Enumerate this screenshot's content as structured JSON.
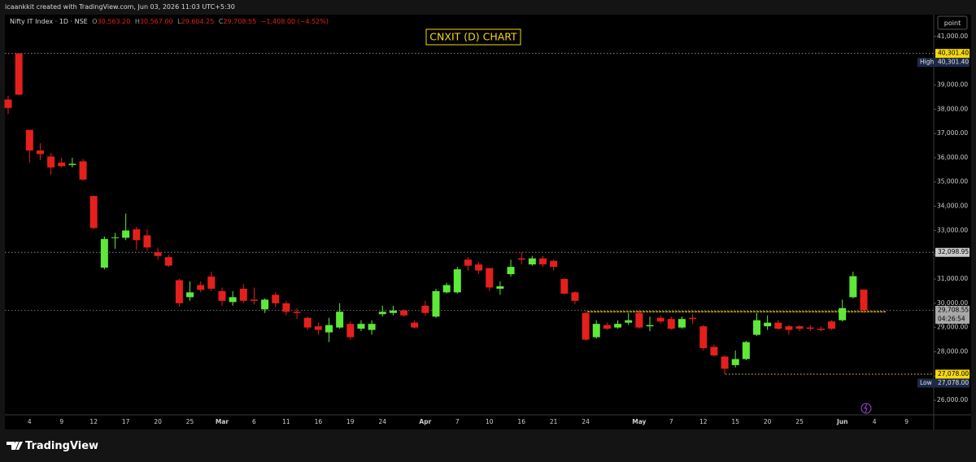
{
  "attribution": "icaankkit created with TradingView.com, Jun 03, 2026 11:03 UTC+5:30",
  "branding": "TradingView",
  "button": "point",
  "legend": {
    "symbol": "Nifty IT Index · 1D · NSE",
    "items": [
      {
        "key": "O",
        "text": "30,563.20"
      },
      {
        "key": "H",
        "text": "30,567.00"
      },
      {
        "key": "L",
        "text": "29,604.25"
      },
      {
        "key": "C",
        "text": "29,708.55"
      }
    ],
    "change": "−1,408.00 (−4.52%)"
  },
  "chart_data": {
    "type": "candlestick",
    "title": "CNXIT (D) CHART",
    "up_color": "#5ee83a",
    "down_color": "#e3201b",
    "categories": [
      null,
      null,
      "4",
      null,
      null,
      "9",
      null,
      null,
      "12",
      null,
      null,
      "17",
      null,
      null,
      "20",
      null,
      null,
      "25",
      null,
      null,
      "Mar",
      null,
      null,
      "6",
      null,
      null,
      "11",
      null,
      null,
      "16",
      null,
      null,
      "19",
      null,
      null,
      "24",
      null,
      null,
      null,
      "Apr",
      null,
      null,
      "7",
      null,
      null,
      "10",
      null,
      null,
      "16",
      null,
      null,
      "21",
      null,
      null,
      "24",
      null,
      null,
      null,
      null,
      "May",
      null,
      null,
      "7",
      null,
      null,
      "12",
      null,
      null,
      "15",
      null,
      null,
      "20",
      null,
      null,
      "25",
      null,
      null,
      null,
      "Jun",
      null,
      null,
      "4",
      null,
      null,
      "9"
    ],
    "open": [
      38400,
      40300,
      37150,
      36300,
      36050,
      35800,
      35700,
      35850,
      34420,
      31470,
      32700,
      32700,
      33050,
      32800,
      32100,
      31900,
      30950,
      30250,
      30750,
      31100,
      30500,
      30050,
      30600,
      30150,
      29750,
      30350,
      30000,
      29650,
      29400,
      29050,
      28800,
      29000,
      29150,
      28950,
      28900,
      29550,
      29600,
      29700,
      29200,
      29900,
      29450,
      30450,
      30450,
      31800,
      31600,
      31450,
      30600,
      31200,
      31850,
      31600,
      31850,
      31750,
      31000,
      30450,
      29600,
      28600,
      29100,
      29000,
      29200,
      29600,
      29050,
      29400,
      29350,
      29000,
      29400,
      29050,
      28200,
      27800,
      27450,
      27700,
      28700,
      29050,
      29200,
      29050,
      29050,
      29000,
      28950,
      29250,
      29300,
      30250,
      30563.2,
      null,
      null,
      null,
      null
    ],
    "high": [
      38550,
      40301.4,
      37150,
      36600,
      36200,
      36000,
      36000,
      35950,
      34450,
      32750,
      32900,
      33700,
      33150,
      33050,
      32300,
      32000,
      31000,
      30900,
      30900,
      31300,
      30650,
      30500,
      30800,
      30650,
      30200,
      30450,
      30100,
      29800,
      29450,
      29200,
      29400,
      30000,
      29250,
      29300,
      29300,
      29900,
      29900,
      29750,
      29300,
      30100,
      30600,
      30850,
      31500,
      31900,
      31700,
      31450,
      30900,
      31800,
      32098.95,
      31950,
      31950,
      31800,
      31050,
      30500,
      29700,
      29300,
      29200,
      29300,
      29600,
      29700,
      29450,
      29500,
      29450,
      29450,
      29550,
      29100,
      28300,
      27850,
      28050,
      28450,
      29600,
      29500,
      29300,
      29100,
      29100,
      29100,
      29050,
      29300,
      30150,
      31300,
      30567,
      null,
      null,
      null,
      null
    ],
    "low": [
      37800,
      38580,
      35800,
      35900,
      35300,
      35600,
      35600,
      35050,
      33050,
      31400,
      32250,
      32600,
      32200,
      32150,
      31800,
      31500,
      29850,
      30100,
      30450,
      30500,
      29900,
      29900,
      30000,
      29950,
      29600,
      29850,
      29500,
      29350,
      28900,
      28700,
      28400,
      28950,
      28500,
      28850,
      28700,
      29450,
      29500,
      29450,
      28950,
      29500,
      29400,
      30400,
      30400,
      31350,
      31200,
      30500,
      30350,
      31100,
      31600,
      31550,
      31500,
      31350,
      30350,
      29950,
      28450,
      28550,
      28900,
      28950,
      29100,
      28950,
      28850,
      29150,
      28900,
      28950,
      29150,
      28050,
      27800,
      27078,
      27350,
      27650,
      28650,
      28900,
      28900,
      28700,
      28850,
      28850,
      28850,
      28900,
      29250,
      30200,
      29604.25,
      null,
      null,
      null,
      null
    ],
    "close": [
      38050,
      38600,
      36300,
      36150,
      35600,
      35650,
      35750,
      35100,
      33100,
      32650,
      32720,
      33000,
      32600,
      32300,
      31950,
      31550,
      30000,
      30450,
      30550,
      30600,
      30100,
      30250,
      30100,
      30100,
      30150,
      30000,
      29650,
      29600,
      29000,
      28900,
      29100,
      29650,
      28600,
      29150,
      29150,
      29650,
      29700,
      29500,
      29000,
      29600,
      30500,
      30750,
      31400,
      31550,
      31350,
      30650,
      30700,
      31500,
      31800,
      31850,
      31600,
      31500,
      30400,
      30100,
      28500,
      29150,
      28950,
      29150,
      29300,
      29000,
      29100,
      29250,
      28950,
      29350,
      29350,
      28150,
      27850,
      27300,
      27700,
      28400,
      29300,
      29200,
      28950,
      28900,
      28950,
      28950,
      28900,
      28950,
      29800,
      31116.55,
      29708.55,
      null,
      null,
      null,
      null
    ],
    "ylim": [
      25400,
      41900
    ],
    "yticks": [
      {
        "value": 41000,
        "label": "41,000.00"
      },
      {
        "value": 40000,
        "label": "40,000.00"
      },
      {
        "value": 39000,
        "label": "39,000.00"
      },
      {
        "value": 38000,
        "label": "38,000.00"
      },
      {
        "value": 37000,
        "label": "37,000.00"
      },
      {
        "value": 36000,
        "label": "36,000.00"
      },
      {
        "value": 35000,
        "label": "35,000.00"
      },
      {
        "value": 34000,
        "label": "34,000.00"
      },
      {
        "value": 33000,
        "label": "33,000.00"
      },
      {
        "value": 32000,
        "label": "32,000.00"
      },
      {
        "value": 31000,
        "label": "31,000.00"
      },
      {
        "value": 30000,
        "label": "30,000.00"
      },
      {
        "value": 29000,
        "label": "29,000.00"
      },
      {
        "value": 28000,
        "label": "28,000.00"
      },
      {
        "value": 27000,
        "label": "27,000.00"
      },
      {
        "value": 26000,
        "label": "26,000.00"
      }
    ],
    "price_lines": [
      {
        "value": 40301.4,
        "label": "40,301.40",
        "tag": "High",
        "color": "#f5d90a",
        "line_color": "#8a8a8a"
      },
      {
        "value": 32098.95,
        "label": "32,098.95",
        "color": "#c9c9c9",
        "line_color": "#8a8a8a"
      },
      {
        "value": 29708.55,
        "label": "29,708.55",
        "sub": "04:26:54",
        "color": "#a9a9a9",
        "line_color": "#6a6a6a"
      },
      {
        "value": 27078,
        "label": "27,078.00",
        "tag": "Low",
        "color": "#f5d90a",
        "line_color": "#f5d90a"
      }
    ],
    "level_line": {
      "value": 29650,
      "color": "#f5d90a"
    }
  }
}
